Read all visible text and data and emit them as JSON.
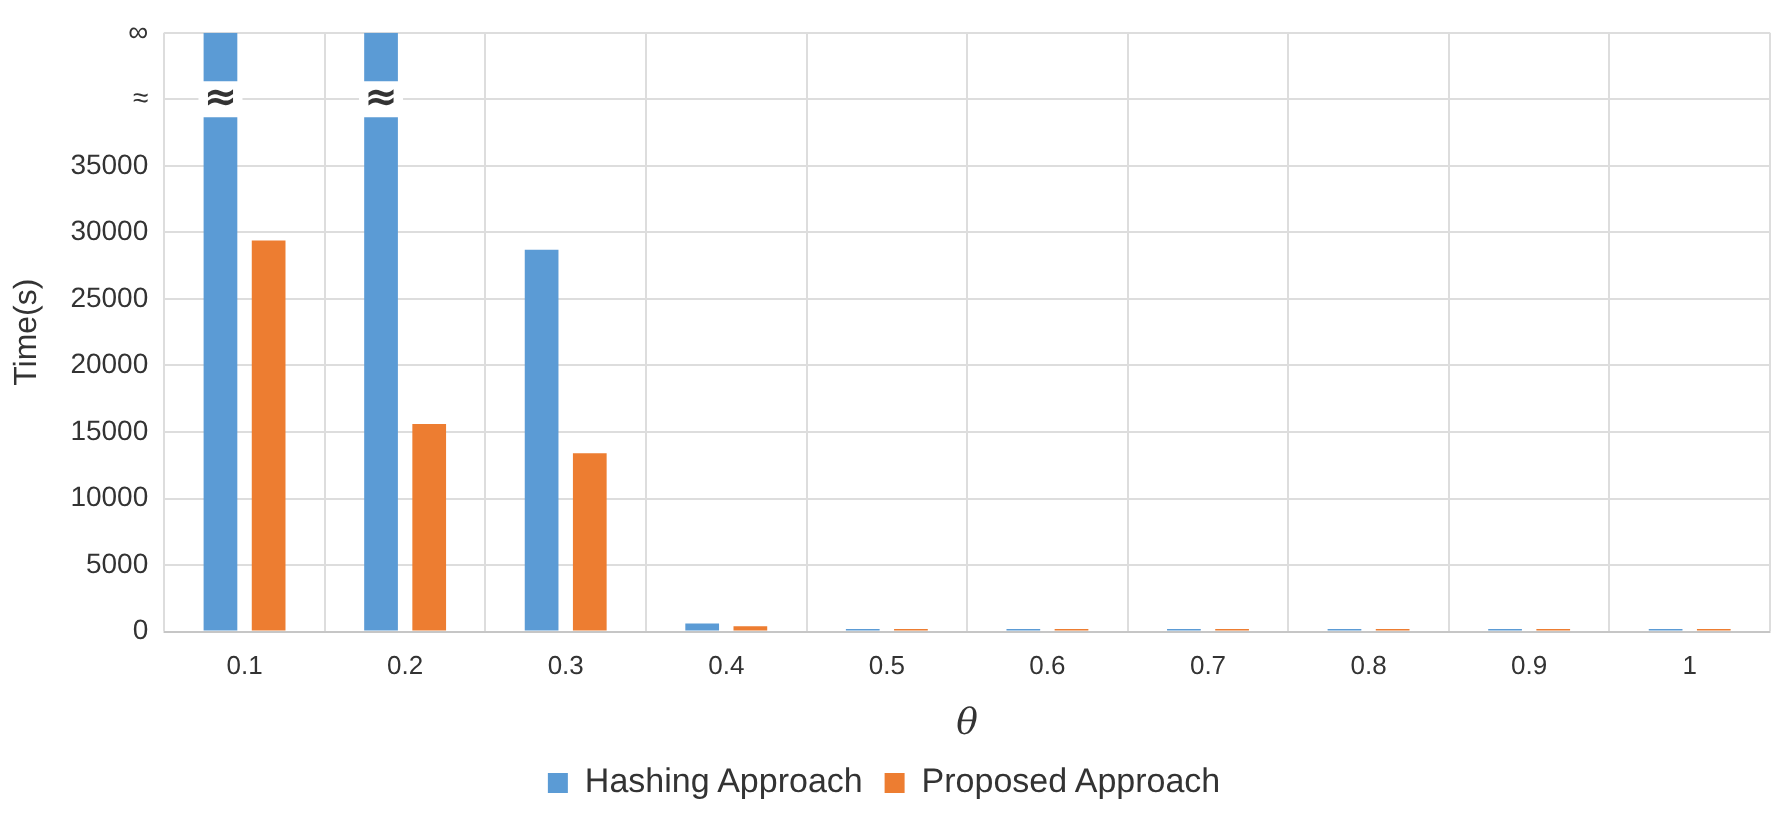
{
  "chart_data": {
    "type": "bar",
    "xlabel": "θ",
    "ylabel": "Time(s)",
    "categories": [
      "0.1",
      "0.2",
      "0.3",
      "0.4",
      "0.5",
      "0.6",
      "0.7",
      "0.8",
      "0.9",
      "1"
    ],
    "series": [
      {
        "name": "Hashing Approach",
        "color": "#5b9bd5",
        "values": [
          45000,
          45000,
          28700,
          600,
          200,
          200,
          200,
          200,
          200,
          200
        ]
      },
      {
        "name": "Proposed Approach",
        "color": "#ed7d31",
        "values": [
          29400,
          15600,
          13400,
          400,
          200,
          200,
          200,
          200,
          200,
          200
        ]
      }
    ],
    "ylim": [
      0,
      45000
    ],
    "yticks": [
      0,
      5000,
      10000,
      15000,
      20000,
      25000,
      30000,
      35000,
      {
        "value": 40000,
        "label": "≈"
      },
      {
        "value": 45000,
        "label": "∞"
      }
    ],
    "annotations": [
      {
        "text": "≈",
        "x": "0.1",
        "y": 40000
      },
      {
        "text": "≈",
        "x": "0.2",
        "y": 40000
      }
    ],
    "grid": true,
    "legend": "bottom"
  }
}
